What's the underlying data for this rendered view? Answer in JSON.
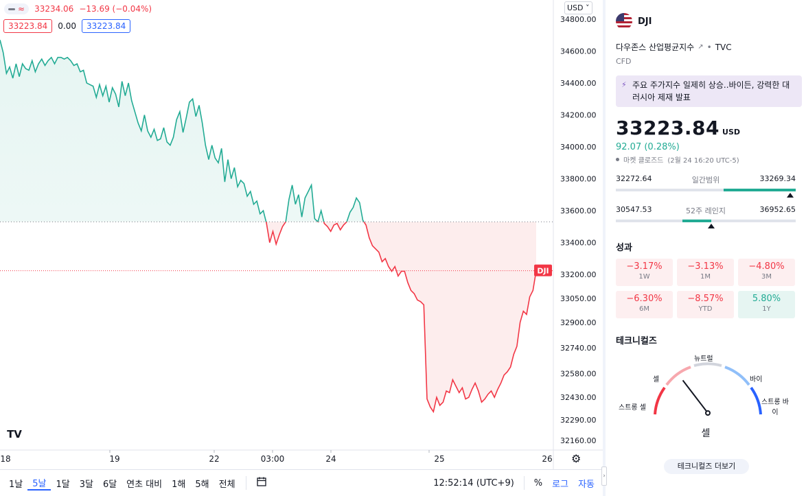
{
  "chart": {
    "legend_value": "33234.06",
    "legend_change": "−13.69 (−0.04%)",
    "price_left": "33223.84",
    "price_mid": "0.00",
    "price_right": "33223.84",
    "currency": "USD",
    "symbol_tag": "DJI",
    "logo_text": "TV"
  },
  "chart_data": {
    "type": "line",
    "ylim": [
      32100,
      34920
    ],
    "y_ticks": [
      "34800.00",
      "34600.00",
      "34400.00",
      "34200.00",
      "34000.00",
      "33800.00",
      "33600.00",
      "33400.00",
      "33200.00",
      "33050.00",
      "32900.00",
      "32740.00",
      "32580.00",
      "32430.00",
      "32290.00",
      "32160.00"
    ],
    "y_tick_values": [
      34800,
      34600,
      34400,
      34200,
      34000,
      33800,
      33600,
      33400,
      33200,
      33050,
      32900,
      32740,
      32580,
      32430,
      32290,
      32160
    ],
    "x_ticks": [
      "18",
      "19",
      "22",
      "03:00",
      "24",
      "25",
      "26"
    ],
    "baseline": 33530,
    "last_price": 33223.84,
    "colors": {
      "up": "#22ab94",
      "down": "#f23645",
      "up_fill": "#e6f5f2",
      "down_fill": "#fde8e8"
    },
    "series": [
      {
        "values": [
          34670,
          34590,
          34460,
          34500,
          34430,
          34520,
          34440,
          34520,
          34490,
          34480,
          34540,
          34470,
          34520,
          34550,
          34510,
          34540,
          34560,
          34520,
          34560,
          34560,
          34550,
          34560,
          34540,
          34510,
          34520,
          34470,
          34480,
          34400,
          34390,
          34380,
          34310,
          34390,
          34320,
          34380,
          34280,
          34370,
          34330,
          34250,
          34410,
          34320,
          34400,
          34290,
          34220,
          34150,
          34100,
          34200,
          34100,
          34060,
          34110,
          34040,
          34050,
          34120,
          34030,
          34010,
          34060,
          34170,
          34220,
          34090,
          34180,
          34280,
          34300,
          34190,
          34260,
          34150,
          34010,
          33920,
          34010,
          33930,
          33900,
          33990,
          33780,
          33920,
          33800,
          33870,
          33750,
          33790,
          33770,
          33690,
          33720,
          33640,
          33660,
          33580,
          33600,
          33520,
          33400,
          33470,
          33390,
          33450,
          33500,
          33530,
          33670,
          33760,
          33640,
          33700,
          33560,
          33680,
          33720,
          33760,
          33550,
          33530,
          33600,
          33520,
          33500,
          33470,
          33510,
          33520,
          33480,
          33510,
          33530,
          33590,
          33620,
          33680,
          33650,
          33540,
          33510,
          33430,
          33380,
          33360,
          33340,
          33280,
          33300,
          33250,
          33220,
          33250,
          33190,
          33220,
          33220,
          33150,
          33100,
          33080,
          33040,
          33030,
          33010,
          32420,
          32370,
          32340,
          32430,
          32380,
          32400,
          32470,
          32460,
          32540,
          32500,
          32460,
          32490,
          32420,
          32430,
          32480,
          32520,
          32470,
          32400,
          32420,
          32450,
          32470,
          32430,
          32480,
          32520,
          32570,
          32590,
          32620,
          32700,
          32750,
          32900,
          32970,
          32950,
          33060,
          33100,
          33223.84
        ]
      }
    ]
  },
  "bottom_bar": {
    "periods": [
      "1날",
      "5날",
      "1달",
      "3달",
      "6달",
      "연초 대비",
      "1해",
      "5해",
      "전체"
    ],
    "active_period": "5날",
    "time": "12:52:14 (UTC+9)",
    "percent": "%",
    "log": "로그",
    "auto": "자동"
  },
  "side": {
    "symbol": "DJI",
    "name": "다우존스 산업평균지수",
    "exchange": "TVC",
    "type": "CFD",
    "news": "주요 주가지수 일제히 상승..바이든, 강력한 대러시아 제재 발표",
    "price": "33223.84",
    "currency": "USD",
    "change": "92.07 (0.28%)",
    "status": "마켓 클로즈드",
    "status_time": "(2월 24 16:20 UTC-5)",
    "day_range": {
      "low": "32272.64",
      "label": "일간범위",
      "high": "33269.34",
      "fill_start": 0.6,
      "fill_end": 1.0,
      "marker": 0.97
    },
    "year_range": {
      "low": "30547.53",
      "label": "52주 레인지",
      "high": "36952.65",
      "fill_start": 0.37,
      "fill_end": 0.53,
      "marker": 0.53
    },
    "performance_title": "성과",
    "performance": [
      {
        "value": "−3.17%",
        "label": "1W",
        "sign": "neg"
      },
      {
        "value": "−3.13%",
        "label": "1M",
        "sign": "neg"
      },
      {
        "value": "−4.80%",
        "label": "3M",
        "sign": "neg"
      },
      {
        "value": "−6.30%",
        "label": "6M",
        "sign": "neg"
      },
      {
        "value": "−8.57%",
        "label": "YTD",
        "sign": "neg"
      },
      {
        "value": "5.80%",
        "label": "1Y",
        "sign": "pos"
      }
    ],
    "technicals_title": "테크니컬즈",
    "gauge": {
      "neutral": "뉴트럴",
      "sell": "셀",
      "buy": "바이",
      "strong_sell": "스트롱 셀",
      "strong_buy": "스트롱 바이",
      "result": "셀",
      "needle_level": 0.3
    },
    "technicals_button": "테크니컬즈 더보기"
  }
}
